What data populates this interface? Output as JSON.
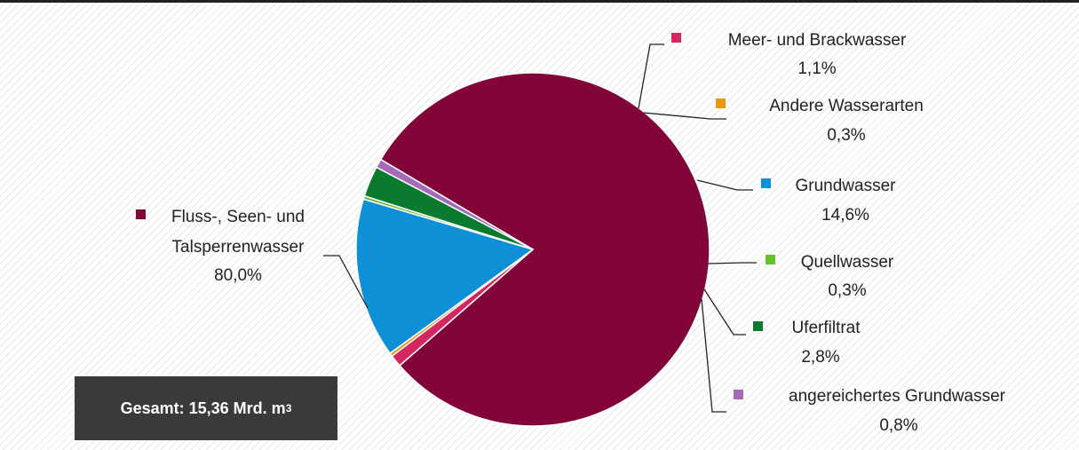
{
  "chart_data": {
    "type": "pie",
    "slices": [
      {
        "name": "Fluss-, Seen- und Talsperrenwasser",
        "value": 80.0,
        "label": "80,0%",
        "color": "#820539"
      },
      {
        "name": "Meer- und Brackwasser",
        "value": 1.1,
        "label": "1,1%",
        "color": "#d5275f"
      },
      {
        "name": "Andere Wasserarten",
        "value": 0.3,
        "label": "0,3%",
        "color": "#e8960c"
      },
      {
        "name": "Grundwasser",
        "value": 14.6,
        "label": "14,6%",
        "color": "#0f8fd5"
      },
      {
        "name": "Quellwasser",
        "value": 0.3,
        "label": "0,3%",
        "color": "#66c32e"
      },
      {
        "name": "Uferfiltrat",
        "value": 2.8,
        "label": "2,8%",
        "color": "#0a7a2f"
      },
      {
        "name": "angereichertes Grundwasser",
        "value": 0.8,
        "label": "0,8%",
        "color": "#a569b8"
      }
    ]
  },
  "total": {
    "text": "Gesamt: 15,36 Mrd. m",
    "sup": "3"
  }
}
